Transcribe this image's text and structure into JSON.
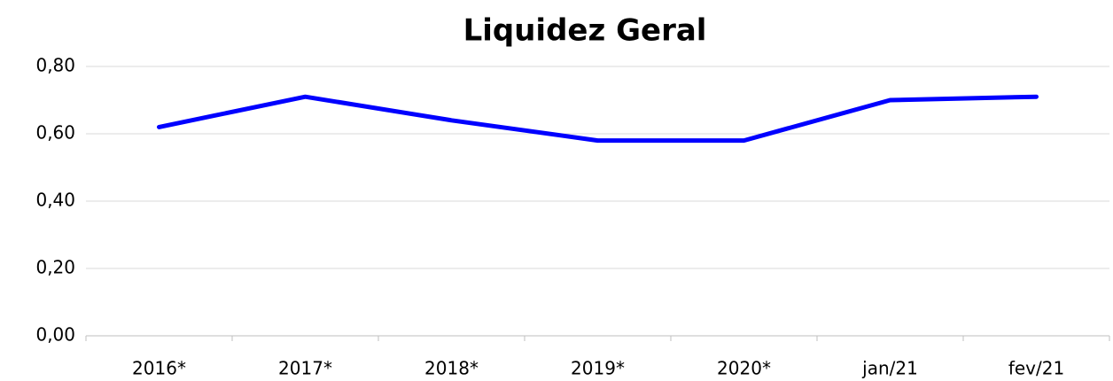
{
  "chart_data": {
    "type": "line",
    "title": "Liquidez Geral",
    "categories": [
      "2016*",
      "2017*",
      "2018*",
      "2019*",
      "2020*",
      "jan/21",
      "fev/21"
    ],
    "series": [
      {
        "name": "Liquidez Geral",
        "color": "#0000ff",
        "values": [
          0.62,
          0.71,
          0.64,
          0.58,
          0.58,
          0.7,
          0.71
        ]
      }
    ],
    "ylim": [
      0,
      0.8
    ],
    "yticks": [
      {
        "value": 0,
        "label": "0,00"
      },
      {
        "value": 0.2,
        "label": "0,20"
      },
      {
        "value": 0.4,
        "label": "0,40"
      },
      {
        "value": 0.6,
        "label": "0,60"
      },
      {
        "value": 0.8,
        "label": "0,80"
      }
    ],
    "grid": true
  }
}
